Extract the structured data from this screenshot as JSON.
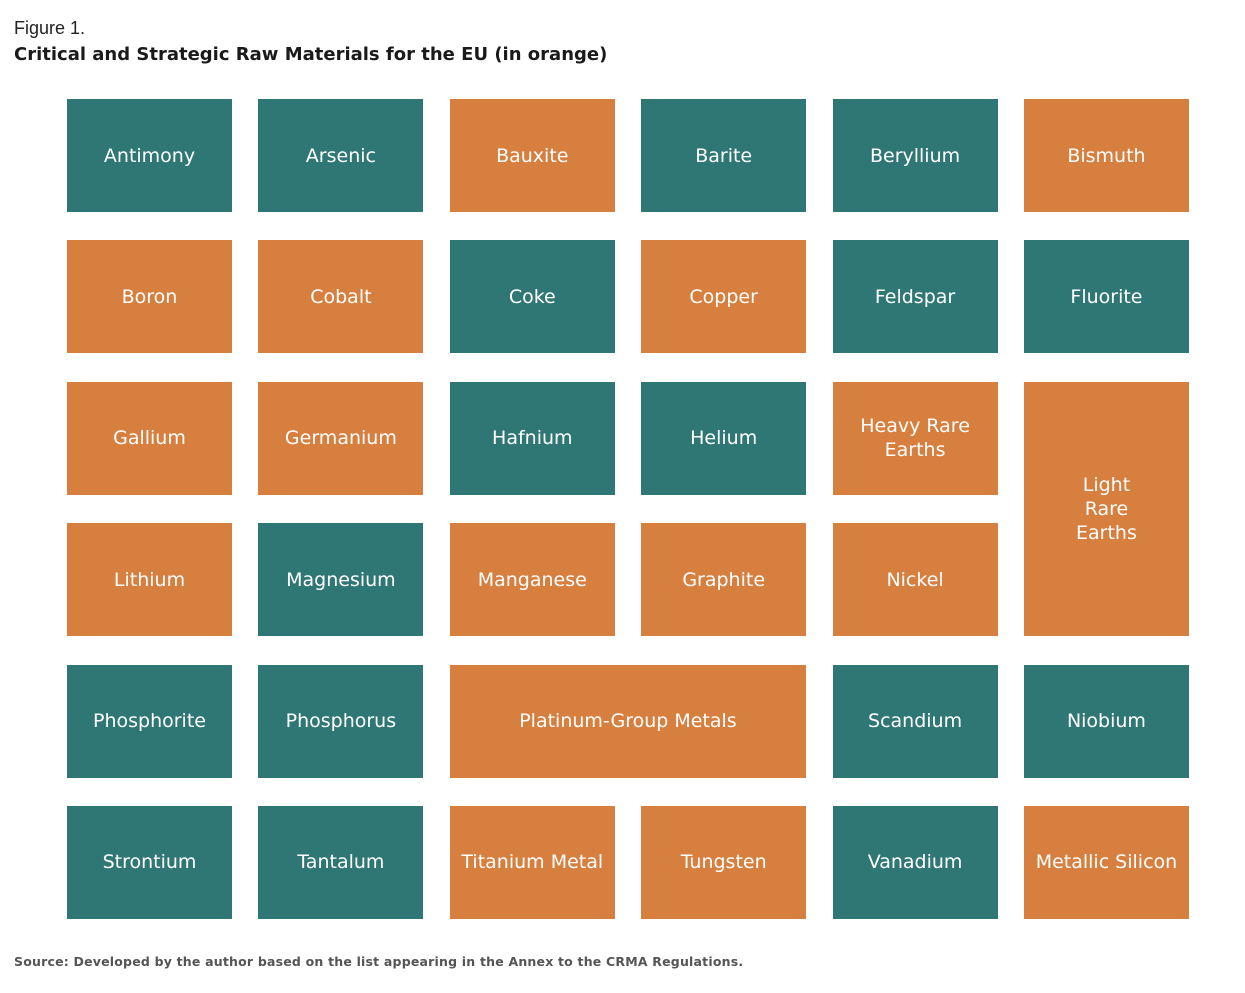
{
  "figure_label": "Figure 1.",
  "title": "Critical and Strategic Raw Materials for the EU (in orange)",
  "source": "Source: Developed by the author based on the list appearing in the Annex to the CRMA Regulations.",
  "colors": {
    "critical": "#2f7774",
    "strategic": "#d77f3f"
  },
  "materials": [
    {
      "name": "Antimony",
      "category": "critical"
    },
    {
      "name": "Arsenic",
      "category": "critical"
    },
    {
      "name": "Bauxite",
      "category": "strategic"
    },
    {
      "name": "Barite",
      "category": "critical"
    },
    {
      "name": "Beryllium",
      "category": "critical"
    },
    {
      "name": "Bismuth",
      "category": "strategic"
    },
    {
      "name": "Boron",
      "category": "strategic"
    },
    {
      "name": "Cobalt",
      "category": "strategic"
    },
    {
      "name": "Coke",
      "category": "critical"
    },
    {
      "name": "Copper",
      "category": "strategic"
    },
    {
      "name": "Feldspar",
      "category": "critical"
    },
    {
      "name": "Fluorite",
      "category": "critical"
    },
    {
      "name": "Gallium",
      "category": "strategic"
    },
    {
      "name": "Germanium",
      "category": "strategic"
    },
    {
      "name": "Hafnium",
      "category": "critical"
    },
    {
      "name": "Helium",
      "category": "critical"
    },
    {
      "name": "Heavy Rare\nEarths",
      "category": "strategic"
    },
    {
      "name": "Light\nRare\nEarths",
      "category": "strategic"
    },
    {
      "name": "Lithium",
      "category": "strategic"
    },
    {
      "name": "Magnesium",
      "category": "critical"
    },
    {
      "name": "Manganese",
      "category": "strategic"
    },
    {
      "name": "Graphite",
      "category": "strategic"
    },
    {
      "name": "Nickel",
      "category": "strategic"
    },
    {
      "name": "Phosphorite",
      "category": "critical"
    },
    {
      "name": "Phosphorus",
      "category": "critical"
    },
    {
      "name": "Platinum-Group Metals",
      "category": "strategic"
    },
    {
      "name": "Scandium",
      "category": "critical"
    },
    {
      "name": "Niobium",
      "category": "critical"
    },
    {
      "name": "Strontium",
      "category": "critical"
    },
    {
      "name": "Tantalum",
      "category": "critical"
    },
    {
      "name": "Titanium Metal",
      "category": "strategic"
    },
    {
      "name": "Tungsten",
      "category": "strategic"
    },
    {
      "name": "Vanadium",
      "category": "critical"
    },
    {
      "name": "Metallic Silicon",
      "category": "strategic"
    }
  ]
}
